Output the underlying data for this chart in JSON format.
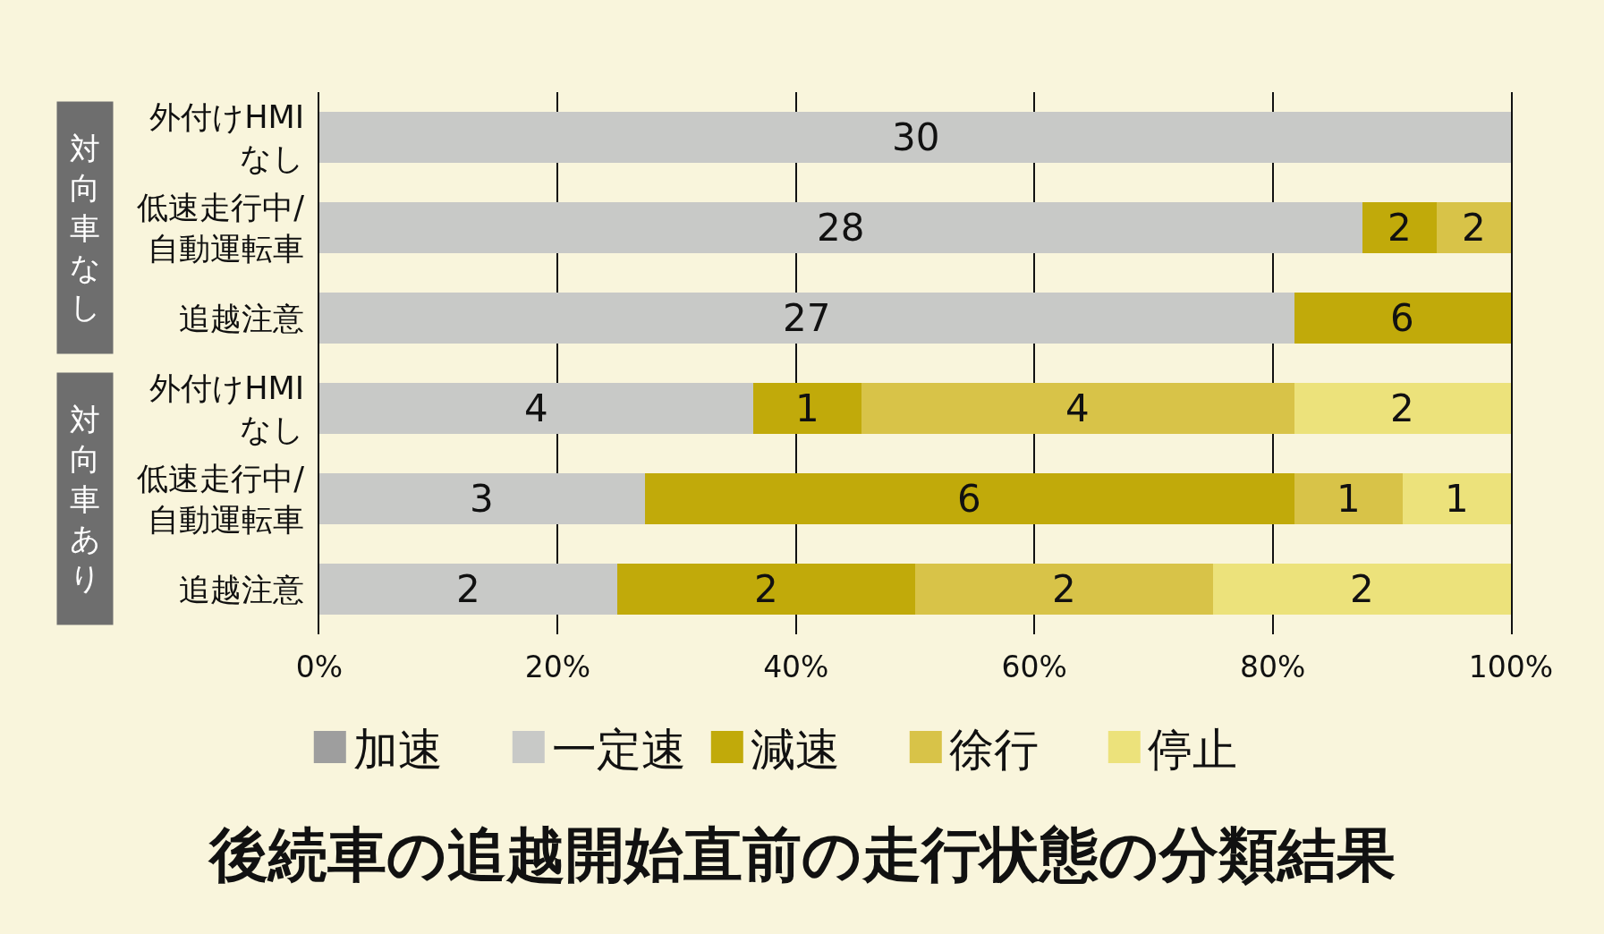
{
  "chart_data": [
    {
      "type": "bar",
      "orientation": "horizontal",
      "stacked": true,
      "ylabel": "対向車なし",
      "categories": [
        "外付けHMI\nなし",
        "低速走行中/\n自動運転車",
        "追越注意"
      ],
      "series": [
        {
          "name": "加速",
          "color": "#9e9e9e",
          "values": [
            0,
            0,
            0
          ]
        },
        {
          "name": "一定速",
          "color": "#c8c9c7",
          "values": [
            100,
            87.5,
            81.8
          ]
        },
        {
          "name": "減速",
          "color": "#c1aa0a",
          "values": [
            0,
            6.3,
            18.2
          ]
        },
        {
          "name": "徐行",
          "color": "#d8c348",
          "values": [
            0,
            6.2,
            0
          ]
        }
      ],
      "annotations": [
        "30",
        "28",
        "2",
        "2",
        "27",
        "6"
      ],
      "xlim": [
        0,
        100
      ],
      "xticks": [
        0,
        20,
        40,
        60,
        80,
        100
      ],
      "tick_labels": "y",
      "grid": "x",
      "legend": "bottom"
    },
    {
      "type": "bar",
      "orientation": "horizontal",
      "stacked": true,
      "ylabel": "対向車あり",
      "title": "後続車の追越開始直前の走行状態の分類結果",
      "categories": [
        "外付けHMI\nなし",
        "低速走行中/\n自動運転車",
        "追越注意"
      ],
      "series": [
        {
          "name": "一定速",
          "color": "#c8c9c7",
          "values": [
            36.4,
            27.3,
            25
          ]
        },
        {
          "name": "減速",
          "color": "#c1aa0a",
          "values": [
            9.1,
            54.5,
            25
          ]
        },
        {
          "name": "徐行",
          "color": "#d8c348",
          "values": [
            36.3,
            9.1,
            25
          ]
        },
        {
          "name": "停止",
          "color": "#ece27b",
          "values": [
            18.2,
            9.1,
            25
          ]
        }
      ],
      "annotations": [
        "4",
        "1",
        "4",
        "2",
        "3",
        "6",
        "1",
        "1",
        "2",
        "2",
        "2",
        "2"
      ],
      "xlim": [
        0,
        100
      ],
      "xticks": [
        {
          "value": 0,
          "label": "0%"
        },
        {
          "value": 20,
          "label": "20%"
        },
        {
          "value": 40,
          "label": "40%"
        },
        {
          "value": 60,
          "label": "60%"
        },
        {
          "value": 80,
          "label": "80%"
        },
        {
          "value": 100,
          "label": "100%"
        }
      ],
      "grid": "x",
      "legend": "bottom"
    }
  ]
}
